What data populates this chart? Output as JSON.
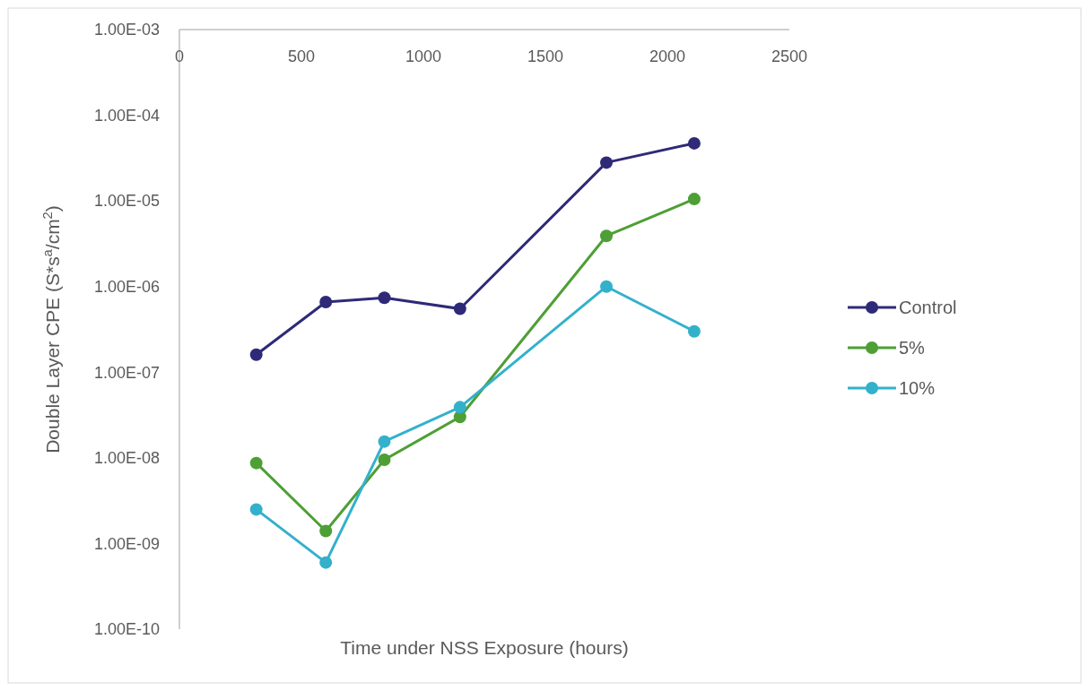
{
  "chart_data": {
    "type": "line",
    "xlabel": "Time under NSS Exposure (hours)",
    "ylabel": "Double Layer CPE (S*s$^{a}$/cm$^{2}$)",
    "x": [
      315,
      600,
      840,
      1150,
      1750,
      2110
    ],
    "series": [
      {
        "name": "Control",
        "color": "#2e2a78",
        "values": [
          1.6e-07,
          6.6e-07,
          7.4e-07,
          5.5e-07,
          2.8e-05,
          4.7e-05
        ]
      },
      {
        "name": "5%",
        "color": "#4e9f35",
        "values": [
          8.7e-09,
          1.4e-09,
          9.5e-09,
          3e-08,
          3.9e-06,
          1.05e-05
        ]
      },
      {
        "name": "10%",
        "color": "#33b1cb",
        "values": [
          2.5e-09,
          6e-10,
          1.55e-08,
          3.9e-08,
          1e-06,
          3e-07
        ]
      }
    ],
    "log": true,
    "xlim": [
      0,
      2500
    ],
    "xticks": [
      0,
      500,
      1000,
      1500,
      2000,
      2500
    ],
    "ylim": [
      1e-10,
      0.001
    ],
    "yticks": [
      {
        "value": 1e-10,
        "label": "1.00E-10"
      },
      {
        "value": 1e-09,
        "label": "1.00E-09"
      },
      {
        "value": 1e-08,
        "label": "1.00E-08"
      },
      {
        "value": 1e-07,
        "label": "1.00E-07"
      },
      {
        "value": 1e-06,
        "label": "1.00E-06"
      },
      {
        "value": 1e-05,
        "label": "1.00E-05"
      },
      {
        "value": 0.0001,
        "label": "1.00E-04"
      },
      {
        "value": 0.001,
        "label": "1.00E-03"
      }
    ],
    "grid": false,
    "legend": "right",
    "marker": "circle",
    "line_style": "solid"
  }
}
